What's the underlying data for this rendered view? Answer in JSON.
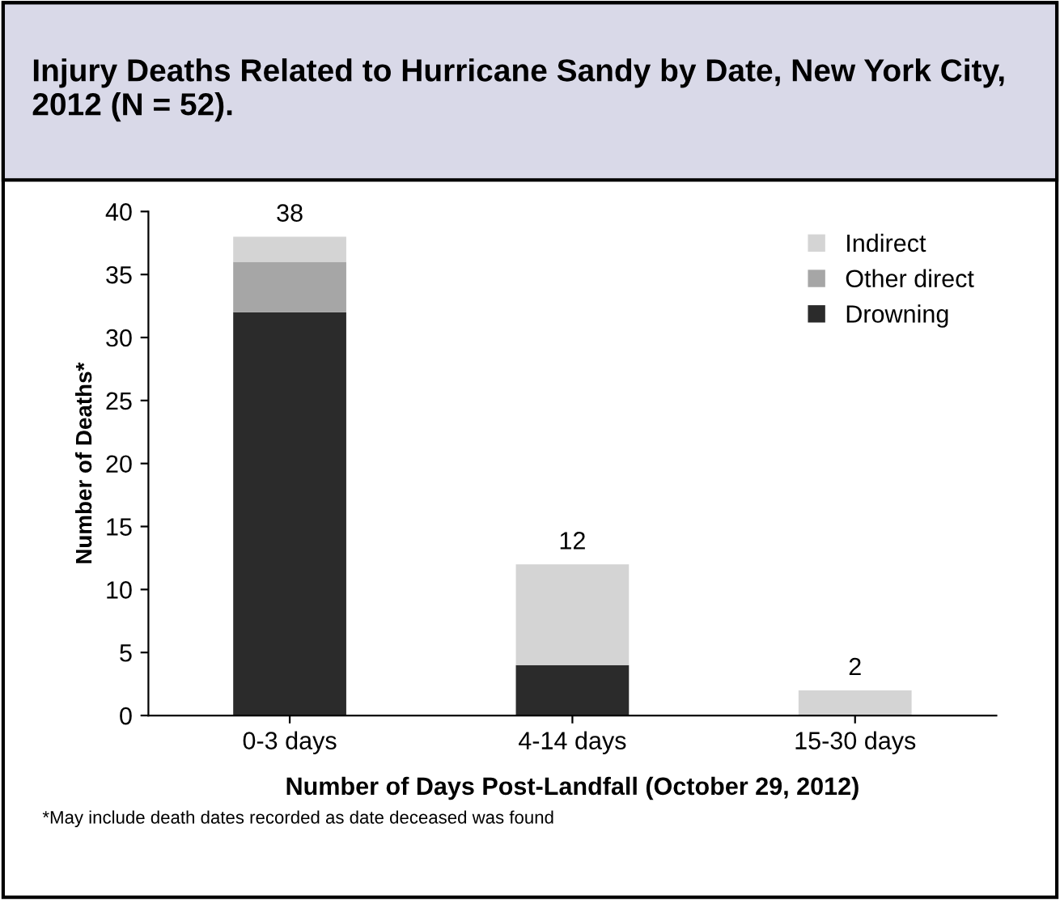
{
  "chart_data": {
    "type": "bar",
    "title": "Injury Deaths Related to Hurricane Sandy by Date, New York City, 2012 (N = 52).",
    "xlabel": "Number of Days Post-Landfall (October 29, 2012)",
    "ylabel": "Number of Deaths*",
    "categories": [
      "0-3 days",
      "4-14 days",
      "15-30 days"
    ],
    "stacked": true,
    "series": [
      {
        "name": "Drowning",
        "color": "#2b2b2b",
        "values": [
          32,
          4,
          0
        ]
      },
      {
        "name": "Other direct",
        "color": "#a6a6a6",
        "values": [
          4,
          0,
          0
        ]
      },
      {
        "name": "Indirect",
        "color": "#d4d4d4",
        "values": [
          2,
          8,
          2
        ]
      }
    ],
    "totals": [
      "38",
      "12",
      "2"
    ],
    "ylim": [
      0,
      40
    ],
    "yticks": [
      0,
      5,
      10,
      15,
      20,
      25,
      30,
      35,
      40
    ],
    "grid": false,
    "legend": "top right",
    "annotations": [
      "*May include death dates recorded as date deceased was found"
    ]
  }
}
